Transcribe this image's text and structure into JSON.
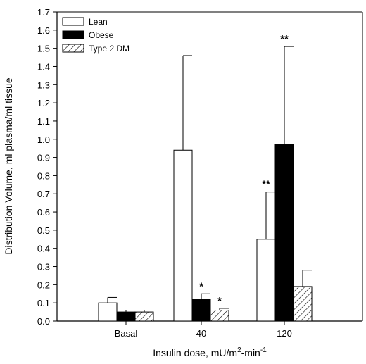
{
  "chart_data": {
    "type": "bar",
    "categories": [
      "Basal",
      "40",
      "120"
    ],
    "series": [
      {
        "name": "Lean",
        "values": [
          0.1,
          0.94,
          0.45
        ],
        "errors": [
          0.03,
          0.52,
          0.26
        ],
        "fill": "white"
      },
      {
        "name": "Obese",
        "values": [
          0.05,
          0.12,
          0.97
        ],
        "errors": [
          0.01,
          0.03,
          0.54
        ],
        "fill": "black"
      },
      {
        "name": "Type 2 DM",
        "values": [
          0.05,
          0.06,
          0.19
        ],
        "errors": [
          0.01,
          0.01,
          0.09
        ],
        "fill": "hatched"
      }
    ],
    "annotations": [
      {
        "series": "Obese",
        "category": "40",
        "text": "*"
      },
      {
        "series": "Type 2 DM",
        "category": "40",
        "text": "*"
      },
      {
        "series": "Lean",
        "category": "120",
        "text": "**"
      },
      {
        "series": "Obese",
        "category": "120",
        "text": "**"
      }
    ],
    "title": "",
    "xlabel": "Insulin dose, mU/m²-min⁻¹",
    "ylabel": "Distribution Volume, ml plasma/ml tissue",
    "ylim": [
      0,
      1.7
    ],
    "yticks": [
      "0.0",
      "0.1",
      "0.2",
      "0.3",
      "0.4",
      "0.5",
      "0.6",
      "0.7",
      "0.8",
      "0.9",
      "1.0",
      "1.1",
      "1.2",
      "1.3",
      "1.4",
      "1.5",
      "1.6",
      "1.7"
    ],
    "grid": false,
    "legend_position": "top-left"
  }
}
